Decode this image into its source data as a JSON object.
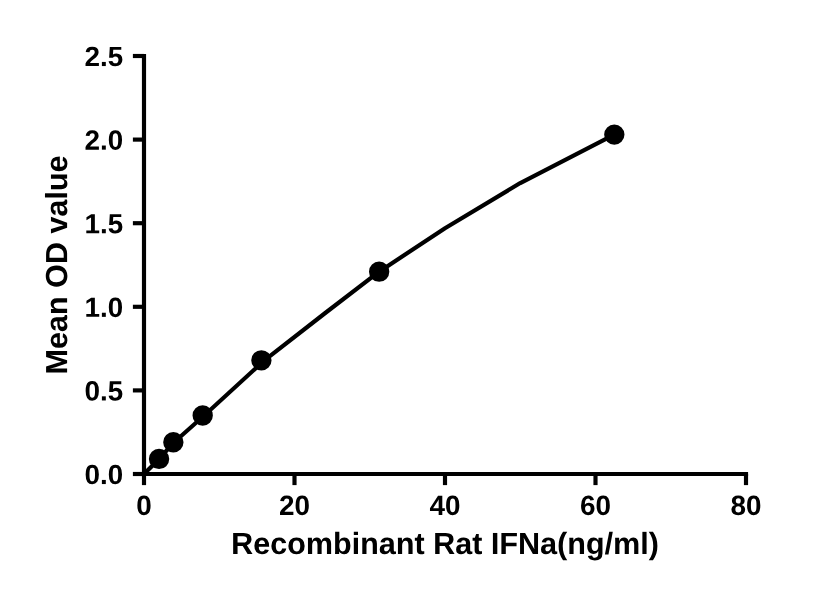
{
  "chart_data": {
    "type": "scatter",
    "xlabel": "Recombinant Rat IFNa(ng/ml)",
    "ylabel": "Mean OD value",
    "xlim": [
      0,
      80
    ],
    "xticks": [
      0,
      20,
      40,
      60,
      80
    ],
    "ylim": [
      0,
      2.5
    ],
    "yticks": [
      {
        "value": 0,
        "label": "0.0"
      },
      {
        "value": 0.5,
        "label": "0.5"
      },
      {
        "value": 1,
        "label": "1.0"
      },
      {
        "value": 1.5,
        "label": "1.5"
      },
      {
        "value": 2,
        "label": "2.0"
      },
      {
        "value": 2.5,
        "label": "2.5"
      }
    ],
    "grid": false,
    "legend": false,
    "series": [
      {
        "color": "#000000",
        "marker": "circle",
        "x": [
          2,
          3.9,
          7.8,
          15.6,
          31.25,
          62.5
        ],
        "values": [
          0.09,
          0.19,
          0.35,
          0.68,
          1.21,
          2.03
        ]
      },
      {
        "type": "line",
        "color": "#000000",
        "marker": "none",
        "line_style": "solid",
        "x": [
          0,
          2,
          4,
          8,
          16,
          24,
          31.25,
          40,
          50,
          62.5
        ],
        "values": [
          0.0,
          0.09,
          0.19,
          0.35,
          0.68,
          0.96,
          1.21,
          1.47,
          1.74,
          2.03
        ]
      }
    ]
  }
}
